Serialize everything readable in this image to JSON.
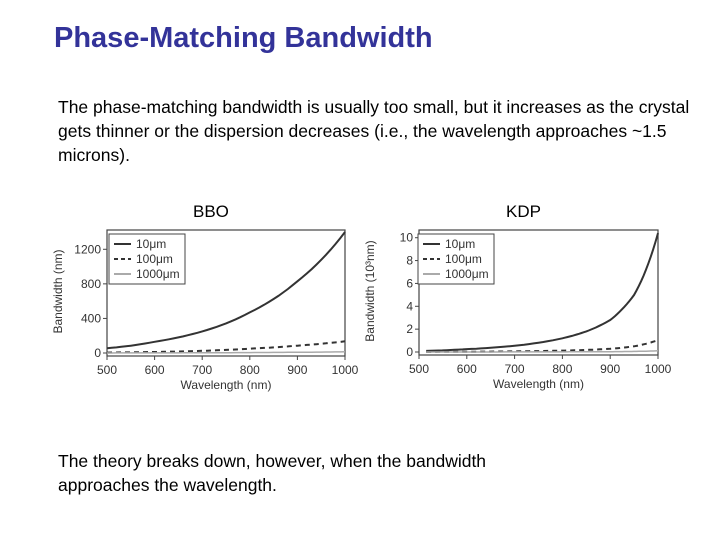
{
  "title": "Phase-Matching Bandwidth",
  "intro": "The phase-matching bandwidth is usually too small, but it increases as the crystal gets thinner or the dispersion decreases (i.e., the wavelength approaches ~1.5 microns).",
  "conclusion": "The theory breaks down, however, when the bandwidth approaches the wavelength.",
  "chart_data": [
    {
      "type": "line",
      "title": "BBO",
      "xlabel": "Wavelength (nm)",
      "ylabel": "Bandwidth (nm)",
      "xlim": [
        500,
        1000
      ],
      "ylim": [
        0,
        1400
      ],
      "xticks": [
        "500",
        "600",
        "700",
        "800",
        "900",
        "1000"
      ],
      "yticks": [
        "0",
        "400",
        "800",
        "1200"
      ],
      "legend": "top-left",
      "grid": false,
      "x": [
        500,
        600,
        700,
        800,
        900,
        1000
      ],
      "series": [
        {
          "name": "10μm",
          "style": "solid",
          "color": "#333333",
          "values": [
            55,
            130,
            250,
            470,
            830,
            1400
          ]
        },
        {
          "name": "100μm",
          "style": "dashed",
          "color": "#333333",
          "values": [
            5,
            12,
            25,
            50,
            85,
            135
          ]
        },
        {
          "name": "1000μm",
          "style": "solid",
          "color": "#aaaaaa",
          "values": [
            0.5,
            1.2,
            2.5,
            5,
            8.5,
            13.5
          ]
        }
      ]
    },
    {
      "type": "line",
      "title": "KDP",
      "xlabel": "Wavelength (nm)",
      "ylabel": "Bandwidth (10³nm)",
      "xlim": [
        500,
        1000
      ],
      "ylim": [
        0,
        10.5
      ],
      "xticks": [
        "500",
        "600",
        "700",
        "800",
        "900",
        "1000"
      ],
      "yticks": [
        "0",
        "2",
        "4",
        "6",
        "8",
        "10"
      ],
      "legend": "top-left",
      "grid": false,
      "x": [
        515,
        600,
        700,
        800,
        850,
        900,
        950,
        1000
      ],
      "series": [
        {
          "name": "10μm",
          "style": "solid",
          "color": "#333333",
          "values": [
            0.1,
            0.25,
            0.55,
            1.2,
            1.8,
            2.8,
            5,
            10.4
          ]
        },
        {
          "name": "100μm",
          "style": "dashed",
          "color": "#333333",
          "values": [
            0.01,
            0.025,
            0.055,
            0.12,
            0.18,
            0.28,
            0.5,
            1.04
          ]
        },
        {
          "name": "1000μm",
          "style": "solid",
          "color": "#aaaaaa",
          "values": [
            0.001,
            0.0025,
            0.0055,
            0.012,
            0.018,
            0.028,
            0.05,
            0.104
          ]
        }
      ]
    }
  ]
}
